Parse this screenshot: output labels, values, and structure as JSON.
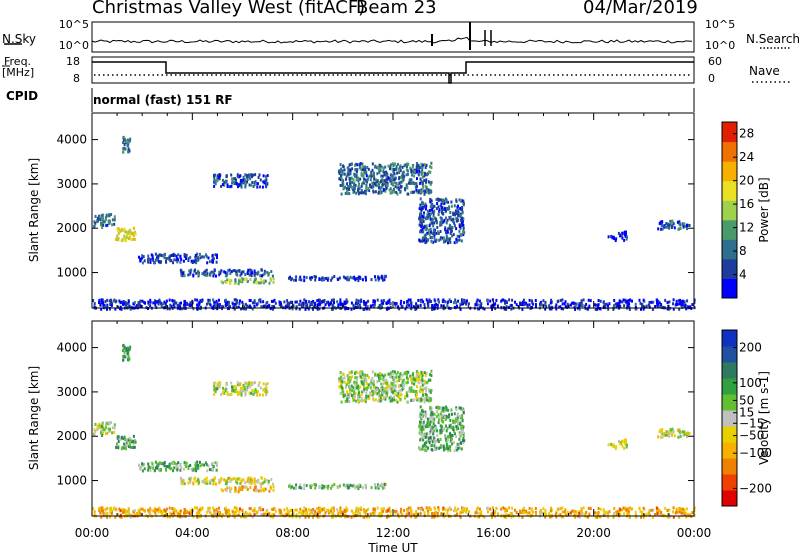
{
  "header": {
    "title_left": "Christmas Valley West (fitACF)",
    "title_beam": "Beam 23",
    "title_date": "04/Mar/2019"
  },
  "strip_labels": {
    "nsky": "N.Sky",
    "nsearch": "N.Search",
    "freq_line1": "Freq.",
    "freq_line2": "[MHz]",
    "nave": "Nave",
    "cpid": "CPID",
    "cpid_text": "normal (fast) 151 RF"
  },
  "noise_axis": {
    "left_ticks": [
      "10^5",
      "10^0"
    ],
    "right_ticks": [
      "10^5",
      "10^0"
    ]
  },
  "freq_axis": {
    "left_ticks": [
      "18",
      "8"
    ],
    "right_ticks": [
      "60",
      "0"
    ]
  },
  "xaxis": {
    "label": "Time UT",
    "ticks": [
      "00:00",
      "04:00",
      "08:00",
      "12:00",
      "16:00",
      "20:00",
      "00:00"
    ]
  },
  "chart_data": [
    {
      "type": "heatmap",
      "name": "power-panel",
      "ylabel": "Slant Range [km]",
      "yticks": [
        1000,
        2000,
        3000,
        4000
      ],
      "ylim": [
        200,
        4600
      ],
      "xlim_hours": [
        0,
        24
      ],
      "colorbar_label": "Power [dB]",
      "colorbar_ticks": [
        4,
        8,
        12,
        16,
        20,
        24,
        28
      ],
      "colorbar_range": [
        0,
        30
      ],
      "colormap": [
        "#0000ff",
        "#1e3c9c",
        "#2f6e8c",
        "#4a9a6c",
        "#9fd24c",
        "#e8e020",
        "#f5b000",
        "#f07000",
        "#e02000"
      ],
      "features": [
        {
          "t0": 0.0,
          "t1": 0.9,
          "r0": 2050,
          "r1": 2350,
          "level": 0.25
        },
        {
          "t0": 0.9,
          "t1": 1.7,
          "r0": 1750,
          "r1": 2050,
          "level": 0.6
        },
        {
          "t0": 1.2,
          "t1": 1.5,
          "r0": 3750,
          "r1": 4100,
          "level": 0.35
        },
        {
          "t0": 1.8,
          "t1": 5.0,
          "r0": 1250,
          "r1": 1450,
          "level": 0.15
        },
        {
          "t0": 3.5,
          "t1": 7.2,
          "r0": 950,
          "r1": 1100,
          "level": 0.2
        },
        {
          "t0": 5.0,
          "t1": 7.2,
          "r0": 780,
          "r1": 900,
          "level": 0.45
        },
        {
          "t0": 4.8,
          "t1": 7.0,
          "r0": 2950,
          "r1": 3250,
          "level": 0.2
        },
        {
          "t0": 7.8,
          "t1": 11.8,
          "r0": 850,
          "r1": 950,
          "level": 0.15
        },
        {
          "t0": 9.8,
          "t1": 13.5,
          "r0": 2800,
          "r1": 3500,
          "level": 0.25
        },
        {
          "t0": 13.0,
          "t1": 14.8,
          "r0": 1700,
          "r1": 2700,
          "level": 0.2
        },
        {
          "t0": 20.5,
          "t1": 21.3,
          "r0": 1750,
          "r1": 1950,
          "level": 0.15
        },
        {
          "t0": 22.5,
          "t1": 23.8,
          "r0": 2000,
          "r1": 2200,
          "level": 0.2
        },
        {
          "t0": 0.0,
          "t1": 24.0,
          "r0": 200,
          "r1": 420,
          "level": 0.1
        }
      ]
    },
    {
      "type": "heatmap",
      "name": "velocity-panel",
      "ylabel": "Slant Range [km]",
      "yticks": [
        1000,
        2000,
        3000,
        4000
      ],
      "ylim": [
        200,
        4600
      ],
      "xlim_hours": [
        0,
        24
      ],
      "colorbar_label": "Velocity [m s-1]",
      "colorbar_ticks": [
        -200,
        -100,
        -50,
        -15,
        15,
        50,
        100,
        200
      ],
      "colorbar_range": [
        -250,
        250
      ],
      "colormap": [
        "#e00000",
        "#f04000",
        "#f08000",
        "#f5b000",
        "#e8d000",
        "#c0c0c0",
        "#60c030",
        "#30a040",
        "#2e7a60",
        "#2050a0",
        "#1030c0"
      ],
      "features": [
        {
          "t0": 0.0,
          "t1": 0.9,
          "r0": 2050,
          "r1": 2350,
          "level": 0.5
        },
        {
          "t0": 0.9,
          "t1": 1.7,
          "r0": 1750,
          "r1": 2050,
          "level": 0.65
        },
        {
          "t0": 1.2,
          "t1": 1.5,
          "r0": 3750,
          "r1": 4100,
          "level": 0.75
        },
        {
          "t0": 1.8,
          "t1": 5.0,
          "r0": 1250,
          "r1": 1450,
          "level": 0.62
        },
        {
          "t0": 3.5,
          "t1": 7.2,
          "r0": 950,
          "r1": 1100,
          "level": 0.45
        },
        {
          "t0": 5.0,
          "t1": 7.2,
          "r0": 780,
          "r1": 900,
          "level": 0.35
        },
        {
          "t0": 4.8,
          "t1": 7.0,
          "r0": 2950,
          "r1": 3250,
          "level": 0.5
        },
        {
          "t0": 7.8,
          "t1": 11.8,
          "r0": 850,
          "r1": 950,
          "level": 0.6
        },
        {
          "t0": 9.8,
          "t1": 13.5,
          "r0": 2800,
          "r1": 3500,
          "level": 0.55
        },
        {
          "t0": 13.0,
          "t1": 14.8,
          "r0": 1700,
          "r1": 2700,
          "level": 0.62
        },
        {
          "t0": 20.5,
          "t1": 21.3,
          "r0": 1750,
          "r1": 1950,
          "level": 0.5
        },
        {
          "t0": 22.5,
          "t1": 23.8,
          "r0": 2000,
          "r1": 2200,
          "level": 0.48
        },
        {
          "t0": 0.0,
          "t1": 24.0,
          "r0": 200,
          "r1": 420,
          "level": 0.32
        }
      ]
    }
  ]
}
